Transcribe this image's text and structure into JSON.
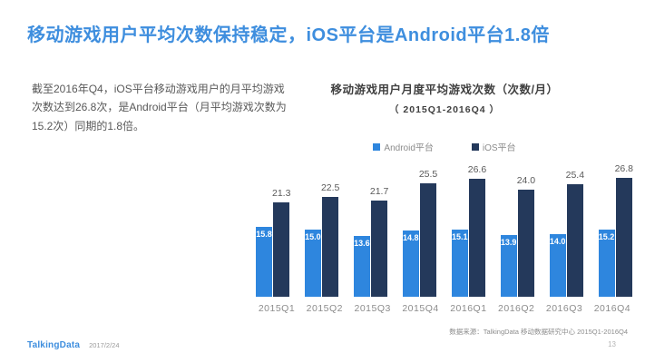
{
  "slide": {
    "title": "移动游戏用户平均次数保持稳定，iOS平台是Android平台1.8倍",
    "body_text": "截至2016年Q4，iOS平台移动游戏用户的月平均游戏次数达到26.8次，是Android平台（月平均游戏次数为15.2次）同期的1.8倍。",
    "source_note": "数据来源：TalkingData 移动数据研究中心   2015Q1-2016Q4",
    "footer": {
      "logo": "TalkingData",
      "date": "2017/2/24",
      "page_number": "13"
    }
  },
  "colors": {
    "title_blue": "#3e8ede",
    "android_blue": "#2e86de",
    "ios_navy": "#24395b",
    "body_gray": "#595959",
    "axis_gray": "#8c8c8c"
  },
  "chart_data": {
    "type": "bar",
    "title": "移动游戏用户月度平均游戏次数（次数/月）",
    "subtitle": "（ 2015Q1-2016Q4 ）",
    "categories": [
      "2015Q1",
      "2015Q2",
      "2015Q3",
      "2015Q4",
      "2016Q1",
      "2016Q2",
      "2016Q3",
      "2016Q4"
    ],
    "series": [
      {
        "name": "Android平台",
        "color": "#2e86de",
        "values": [
          15.8,
          15.0,
          13.6,
          14.8,
          15.1,
          13.9,
          14.0,
          15.2
        ],
        "label_style": "inside-white"
      },
      {
        "name": "iOS平台",
        "color": "#24395b",
        "values": [
          21.3,
          22.5,
          21.7,
          25.5,
          26.6,
          24.0,
          25.4,
          26.8
        ],
        "label_style": "above-gray"
      }
    ],
    "ylim": [
      0,
      28
    ],
    "grid": false,
    "legend_position": "top",
    "data_labels": true
  }
}
